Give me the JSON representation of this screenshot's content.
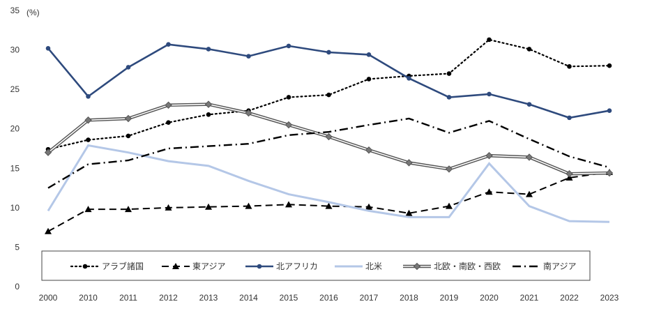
{
  "chart_data": {
    "type": "line",
    "unit_label": "(%)",
    "title": "",
    "xlabel": "",
    "ylabel": "",
    "categories": [
      "2000",
      "2010",
      "2011",
      "2012",
      "2013",
      "2014",
      "2015",
      "2016",
      "2017",
      "2018",
      "2019",
      "2020",
      "2021",
      "2022",
      "2023"
    ],
    "ylim": [
      0,
      35
    ],
    "yticks": [
      0,
      5,
      10,
      15,
      20,
      25,
      30,
      35
    ],
    "grid": false,
    "legend_position": "bottom",
    "series": [
      {
        "name": "アラブ諸国",
        "style": "dotted",
        "marker": "circle",
        "color": "#000000",
        "values": [
          17.4,
          18.6,
          19.1,
          20.8,
          21.8,
          22.3,
          24.0,
          24.3,
          26.3,
          26.7,
          27.0,
          31.3,
          30.1,
          27.9,
          28.0
        ]
      },
      {
        "name": "東アジア",
        "style": "dashed",
        "marker": "triangle",
        "color": "#000000",
        "values": [
          7.0,
          9.8,
          9.8,
          10.0,
          10.1,
          10.2,
          10.4,
          10.2,
          10.1,
          9.3,
          10.2,
          12.0,
          11.7,
          13.8,
          14.5
        ]
      },
      {
        "name": "北アフリカ",
        "style": "solid",
        "marker": "circle",
        "color": "#2E4A7D",
        "values": [
          30.2,
          24.1,
          27.8,
          30.7,
          30.1,
          29.2,
          30.5,
          29.7,
          29.4,
          26.4,
          24.0,
          24.4,
          23.1,
          21.4,
          22.3
        ]
      },
      {
        "name": "北米",
        "style": "solid",
        "marker": "none",
        "color": "#B4C7E7",
        "values": [
          9.6,
          17.9,
          17.0,
          15.9,
          15.3,
          13.4,
          11.7,
          10.7,
          9.6,
          8.8,
          8.8,
          15.6,
          10.2,
          8.3,
          8.2
        ]
      },
      {
        "name": "北欧・南欧・西欧",
        "style": "double",
        "marker": "diamond",
        "color": "#555555",
        "values": [
          17.0,
          21.1,
          21.3,
          23.0,
          23.1,
          22.0,
          20.5,
          19.0,
          17.3,
          15.7,
          14.9,
          16.6,
          16.4,
          14.3,
          14.4
        ]
      },
      {
        "name": "南アジア",
        "style": "dashdot",
        "marker": "none",
        "color": "#000000",
        "values": [
          12.5,
          15.5,
          16.0,
          17.5,
          17.8,
          18.1,
          19.2,
          19.6,
          20.5,
          21.3,
          19.5,
          21.0,
          18.7,
          16.5,
          15.1
        ]
      }
    ]
  }
}
